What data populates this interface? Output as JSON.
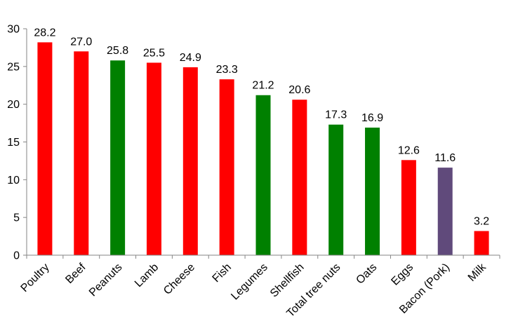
{
  "chart_data": {
    "type": "bar",
    "title": "",
    "xlabel": "",
    "ylabel": "",
    "ylim": [
      0,
      30
    ],
    "yticks": [
      0,
      5,
      10,
      15,
      20,
      25,
      30
    ],
    "grid": false,
    "legend": "none",
    "categories": [
      "Poultry",
      "Beef",
      "Peanuts",
      "Lamb",
      "Cheese",
      "Fish",
      "Legumes",
      "Shellfish",
      "Total tree nuts",
      "Oats",
      "Eggs",
      "Bacon (Pork)",
      "Milk"
    ],
    "values": [
      28.2,
      27.0,
      25.8,
      25.5,
      24.9,
      23.3,
      21.2,
      20.6,
      17.3,
      16.9,
      12.6,
      11.6,
      3.2
    ],
    "value_labels": [
      "28.2",
      "27.0",
      "25.8",
      "25.5",
      "24.9",
      "23.3",
      "21.2",
      "20.6",
      "17.3",
      "16.9",
      "12.6",
      "11.6",
      "3.2"
    ],
    "bar_colors": [
      "#ff0000",
      "#ff0000",
      "#008000",
      "#ff0000",
      "#ff0000",
      "#ff0000",
      "#008000",
      "#ff0000",
      "#008000",
      "#008000",
      "#ff0000",
      "#604a7b",
      "#ff0000"
    ]
  }
}
